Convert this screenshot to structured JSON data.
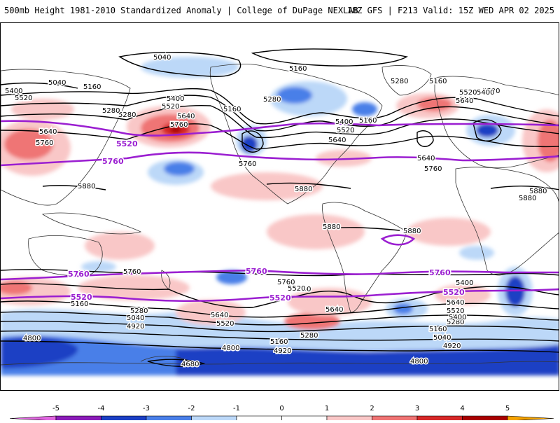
{
  "header": {
    "title_left": "500mb Height 1981-2010 Standardized Anomaly | College of DuPage NEXLAB",
    "title_right": "18Z GFS | F213 Valid: 15Z WED APR 02 2025"
  },
  "colors": {
    "neg5": "#e066e0",
    "neg4": "#8a1bb8",
    "neg3": "#1b3fc4",
    "neg2": "#4a7fe8",
    "neg1": "#bcd8f8",
    "zero": "#ffffff",
    "pos1": "#f9c7c7",
    "pos2": "#ef7474",
    "pos3": "#d62828",
    "pos4": "#a80000",
    "pos5": "#f5a300",
    "height_contour": "#000000",
    "highlight_contour": "#9b1fd1",
    "land_outline": "#333333"
  },
  "legend": {
    "ticks": [
      "-5",
      "-4",
      "-3",
      "-2",
      "-1",
      "0",
      "1",
      "2",
      "3",
      "4",
      "5"
    ]
  },
  "highlight_contours": [
    "5520",
    "5760"
  ],
  "contour_labels": [
    "5040",
    "5160",
    "5040",
    "5400",
    "5520",
    "5280",
    "5640",
    "5760",
    "5520",
    "5760",
    "5160",
    "5280",
    "5400",
    "5520",
    "5640",
    "5280",
    "5160",
    "5160",
    "5400",
    "5520",
    "5640",
    "5760",
    "5880",
    "5880",
    "5880",
    "5880",
    "5520",
    "5760",
    "5640",
    "5760",
    "5760",
    "5400",
    "5520",
    "5640",
    "5880",
    "5280",
    "5160",
    "5400",
    "5520",
    "5160",
    "5280",
    "5040",
    "4920",
    "4800",
    "4680",
    "5760",
    "5760",
    "5760",
    "5520",
    "5520",
    "5520",
    "5400",
    "5640",
    "5640",
    "5520",
    "5280",
    "5160",
    "5160",
    "5040",
    "4920",
    "4800",
    "4920",
    "4800",
    "5640",
    "5520",
    "5400",
    "5280",
    "5760",
    "5880"
  ]
}
